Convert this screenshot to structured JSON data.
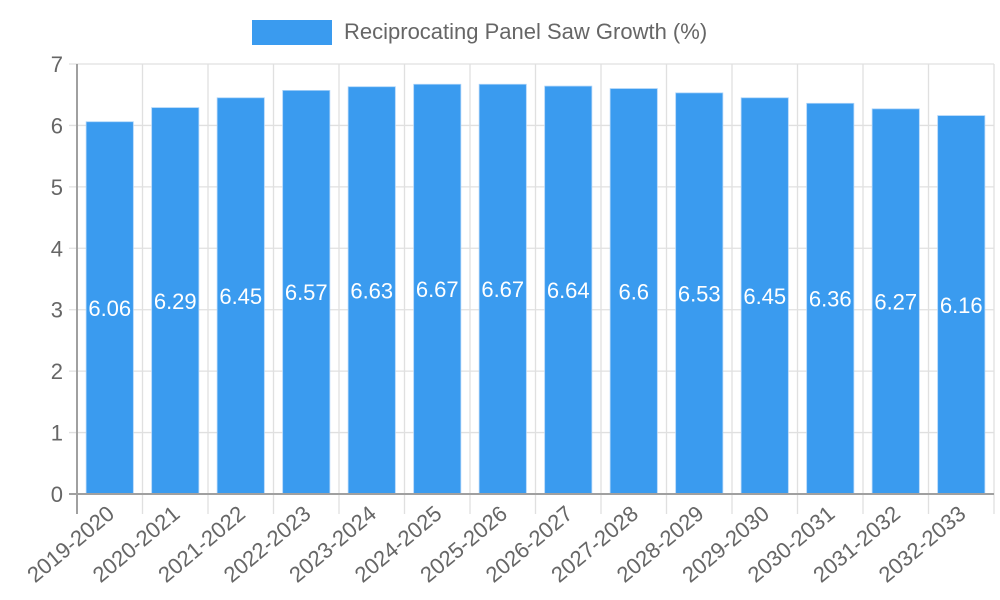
{
  "chart_data": {
    "type": "bar",
    "title": "",
    "legend": [
      {
        "label": "Reciprocating Panel Saw Growth (%)",
        "color": "#3a9bef"
      }
    ],
    "legend_position": "top",
    "categories": [
      "2019-2020",
      "2020-2021",
      "2021-2022",
      "2022-2023",
      "2023-2024",
      "2024-2025",
      "2025-2026",
      "2026-2027",
      "2027-2028",
      "2028-2029",
      "2029-2030",
      "2030-2031",
      "2031-2032",
      "2032-2033"
    ],
    "series": [
      {
        "name": "Reciprocating Panel Saw Growth (%)",
        "values": [
          6.06,
          6.29,
          6.45,
          6.57,
          6.63,
          6.67,
          6.67,
          6.64,
          6.6,
          6.53,
          6.45,
          6.36,
          6.27,
          6.16
        ],
        "color": "#3a9bef"
      }
    ],
    "value_labels": [
      "6.06",
      "6.29",
      "6.45",
      "6.57",
      "6.63",
      "6.67",
      "6.67",
      "6.64",
      "6.6",
      "6.53",
      "6.45",
      "6.36",
      "6.27",
      "6.16"
    ],
    "xlabel": "",
    "ylabel": "",
    "ylim": [
      0,
      7
    ],
    "yticks": [
      0,
      1,
      2,
      3,
      4,
      5,
      6,
      7
    ],
    "grid": true
  },
  "legend": {
    "label": "Reciprocating Panel Saw Growth (%)"
  }
}
